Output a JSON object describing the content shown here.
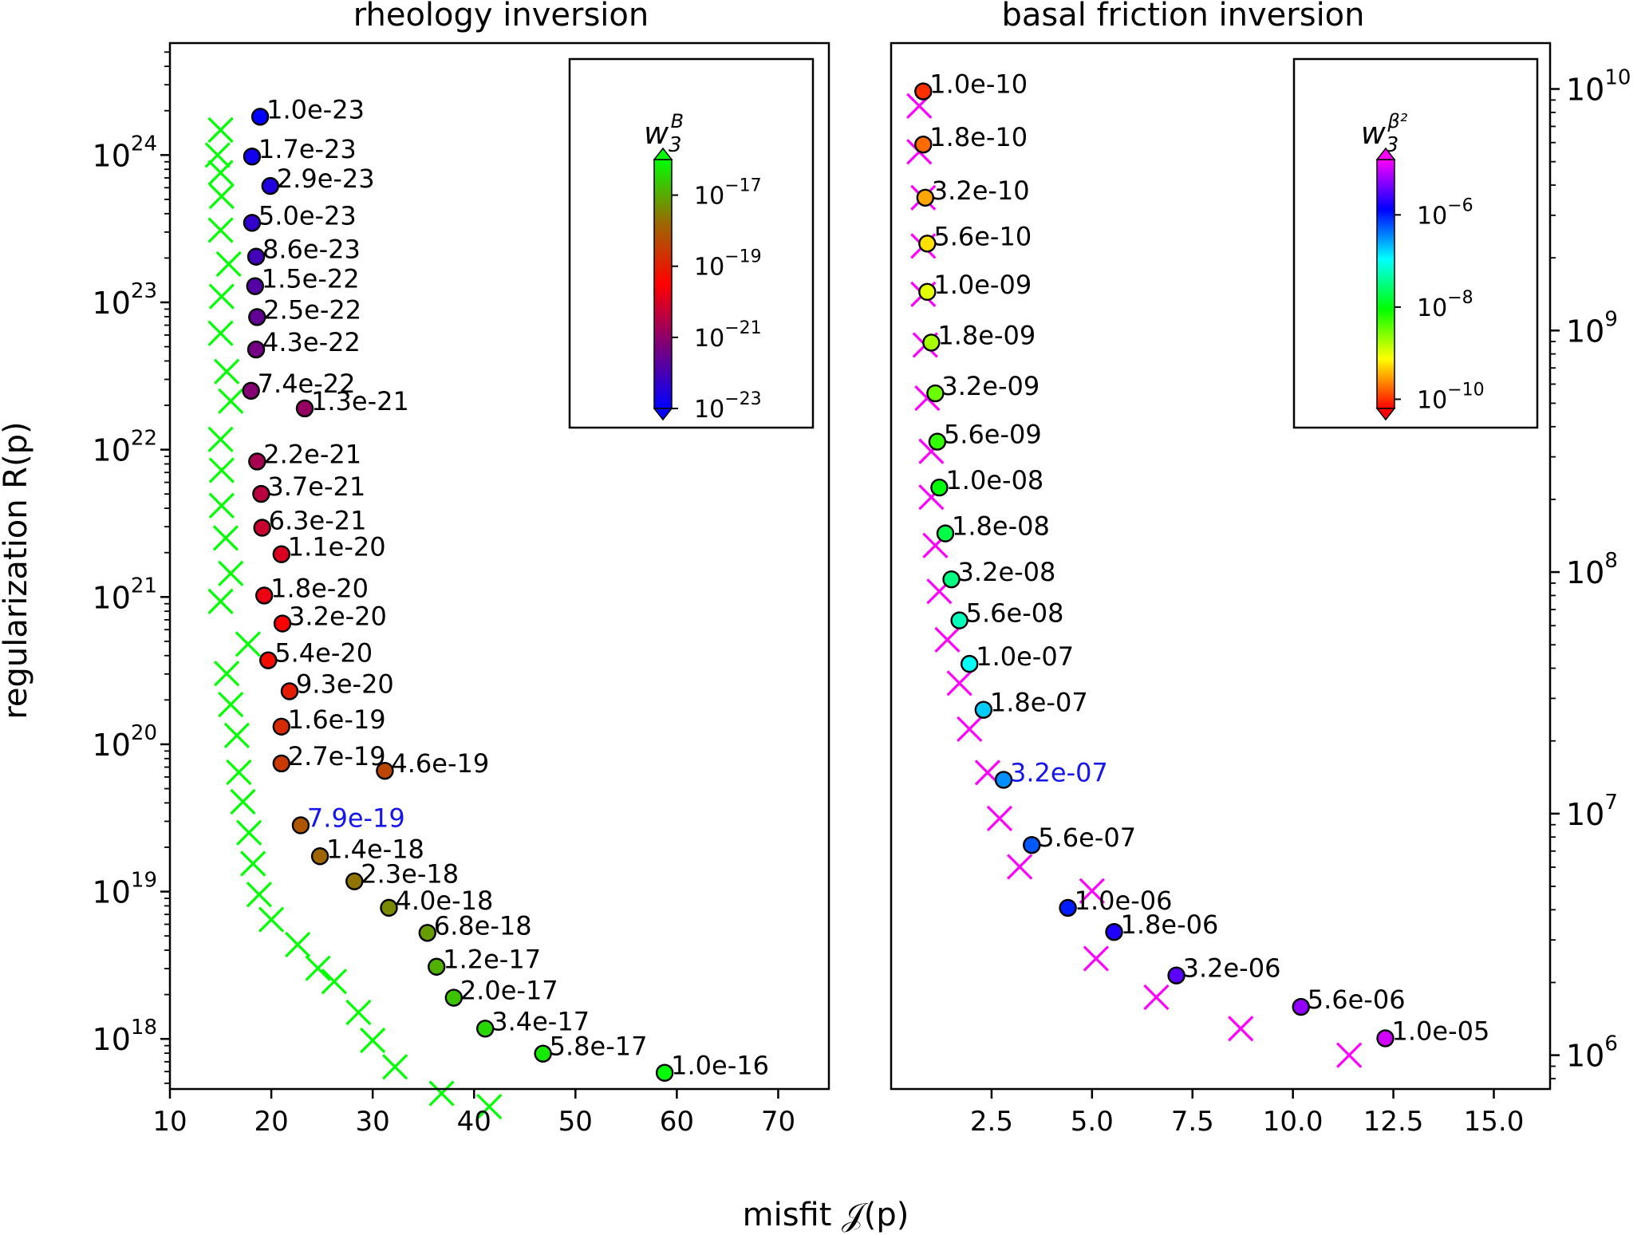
{
  "figure": {
    "xlabel": "misfit 𝒥(p)",
    "ylabel": "regularization R(p)"
  },
  "chart_data": [
    {
      "type": "scatter",
      "title": "rheology inversion",
      "xlim": [
        10,
        75
      ],
      "xticks": [
        10,
        20,
        30,
        40,
        50,
        60,
        70
      ],
      "xtick_labels": [
        "10",
        "20",
        "30",
        "40",
        "50",
        "60",
        "70"
      ],
      "yscale": "log",
      "ylim_exp": [
        17.66,
        24.76
      ],
      "yticks_exp": [
        18,
        19,
        20,
        21,
        22,
        23,
        24
      ],
      "ytick_labels": [
        "10",
        "10",
        "10",
        "10",
        "10",
        "10",
        "10"
      ],
      "ytick_superscripts": [
        "18",
        "19",
        "20",
        "21",
        "22",
        "23",
        "24"
      ],
      "yaxis_side": "left",
      "highlight": "7.9e-19",
      "highlight_color": "#1515ee",
      "colorbar": {
        "symbol": "w",
        "subscript": "3",
        "superscript": "B",
        "range_exp": [
          -23,
          -16
        ],
        "tick_exps": [
          -23,
          -21,
          -19,
          -17
        ],
        "tick_labels": [
          "10",
          "10",
          "10",
          "10"
        ],
        "tick_superscripts": [
          "−23",
          "−21",
          "−19",
          "−17"
        ],
        "stops": [
          "#0000ff",
          "#7b007b",
          "#ff0000",
          "#996b00",
          "#00ff00"
        ]
      },
      "series": [
        {
          "name": "labeled (circles)",
          "labels": [
            "1.0e-23",
            "1.7e-23",
            "2.9e-23",
            "5.0e-23",
            "8.6e-23",
            "1.5e-22",
            "2.5e-22",
            "4.3e-22",
            "7.4e-22",
            "1.3e-21",
            "2.2e-21",
            "3.7e-21",
            "6.3e-21",
            "1.1e-20",
            "1.8e-20",
            "3.2e-20",
            "5.4e-20",
            "9.3e-20",
            "1.6e-19",
            "2.7e-19",
            "4.6e-19",
            "7.9e-19",
            "1.4e-18",
            "2.3e-18",
            "4.0e-18",
            "6.8e-18",
            "1.2e-17",
            "2.0e-17",
            "3.4e-17",
            "5.8e-17",
            "1.0e-16"
          ],
          "x": [
            18.9,
            18.1,
            19.9,
            18.1,
            18.5,
            18.4,
            18.6,
            18.5,
            18.0,
            23.3,
            18.6,
            19.0,
            19.1,
            21.0,
            19.3,
            21.1,
            19.7,
            21.8,
            21.0,
            21.0,
            31.2,
            22.9,
            24.8,
            28.2,
            31.6,
            35.4,
            36.3,
            38.0,
            41.1,
            46.8,
            58.8
          ],
          "y_exp": [
            24.26,
            23.99,
            23.79,
            23.54,
            23.31,
            23.11,
            22.9,
            22.68,
            22.4,
            22.28,
            21.92,
            21.7,
            21.47,
            21.29,
            21.01,
            20.82,
            20.57,
            20.36,
            20.12,
            19.87,
            19.82,
            19.45,
            19.24,
            19.07,
            18.89,
            18.72,
            18.49,
            18.28,
            18.07,
            17.9,
            17.77
          ]
        },
        {
          "name": "crosses",
          "x": [
            15.0,
            14.7,
            15.0,
            15.1,
            15.0,
            15.8,
            15.1,
            15.0,
            15.6,
            16.0,
            15.0,
            15.1,
            15.1,
            15.5,
            16.0,
            15.0,
            17.7,
            15.6,
            16.0,
            16.6,
            16.8,
            17.2,
            17.8,
            18.2,
            18.8,
            20.0,
            22.6,
            24.6,
            26.2,
            28.6,
            30.0,
            32.2,
            36.8,
            41.5
          ],
          "y_exp": [
            24.17,
            24.0,
            23.88,
            23.72,
            23.49,
            23.26,
            23.04,
            22.79,
            22.53,
            22.33,
            22.07,
            21.86,
            21.62,
            21.4,
            21.16,
            20.97,
            20.68,
            20.48,
            20.27,
            20.06,
            19.81,
            19.61,
            19.4,
            19.19,
            18.98,
            18.81,
            18.64,
            18.48,
            18.39,
            18.18,
            17.99,
            17.81,
            17.63,
            17.54
          ]
        }
      ]
    },
    {
      "type": "scatter",
      "title": "basal friction inversion",
      "xlim": [
        0.0,
        16.4
      ],
      "xticks": [
        2.5,
        5.0,
        7.5,
        10.0,
        12.5,
        15.0
      ],
      "xtick_labels": [
        "2.5",
        "5.0",
        "7.5",
        "10.0",
        "12.5",
        "15.0"
      ],
      "yscale": "log",
      "ylim_exp": [
        5.86,
        10.19
      ],
      "yticks_exp": [
        6,
        7,
        8,
        9,
        10
      ],
      "ytick_labels": [
        "10",
        "10",
        "10",
        "10",
        "10"
      ],
      "ytick_superscripts": [
        "6",
        "7",
        "8",
        "9",
        "10"
      ],
      "yaxis_side": "right",
      "highlight": "3.2e-07",
      "highlight_color": "#1515ee",
      "colorbar": {
        "symbol": "w",
        "subscript": "3",
        "superscript": "β²",
        "range_exp": [
          -10.2,
          -4.8
        ],
        "tick_exps": [
          -10,
          -8,
          -6
        ],
        "tick_labels": [
          "10",
          "10",
          "10"
        ],
        "tick_superscripts": [
          "−10",
          "−8",
          "−6"
        ],
        "stops": [
          "#ff0000",
          "#ffff00",
          "#00ff00",
          "#00ffff",
          "#0000ff",
          "#ff00ff"
        ]
      },
      "series": [
        {
          "name": "labeled (circles)",
          "labels": [
            "1.0e-10",
            "1.8e-10",
            "3.2e-10",
            "5.6e-10",
            "1.0e-09",
            "1.8e-09",
            "3.2e-09",
            "5.6e-09",
            "1.0e-08",
            "1.8e-08",
            "3.2e-08",
            "5.6e-08",
            "1.0e-07",
            "1.8e-07",
            "3.2e-07",
            "5.6e-07",
            "1.0e-06",
            "1.8e-06",
            "3.2e-06",
            "5.6e-06",
            "1.0e-05"
          ],
          "x": [
            0.8,
            0.8,
            0.85,
            0.9,
            0.9,
            1.0,
            1.1,
            1.15,
            1.2,
            1.35,
            1.5,
            1.7,
            1.95,
            2.3,
            2.8,
            3.5,
            4.4,
            5.55,
            7.1,
            10.2,
            12.3
          ],
          "y_exp": [
            9.99,
            9.77,
            9.55,
            9.36,
            9.16,
            8.95,
            8.74,
            8.54,
            8.35,
            8.16,
            7.97,
            7.8,
            7.62,
            7.43,
            7.14,
            6.87,
            6.61,
            6.51,
            6.33,
            6.2,
            6.07
          ]
        },
        {
          "name": "crosses",
          "x": [
            0.7,
            0.7,
            0.8,
            0.8,
            0.8,
            0.85,
            0.9,
            1.0,
            1.0,
            1.1,
            1.2,
            1.4,
            1.7,
            1.95,
            2.4,
            2.7,
            3.2,
            5.0,
            5.1,
            6.6,
            8.7,
            11.4
          ],
          "y_exp": [
            9.93,
            9.74,
            9.55,
            9.35,
            9.15,
            8.94,
            8.72,
            8.5,
            8.31,
            8.11,
            7.92,
            7.72,
            7.54,
            7.35,
            7.17,
            6.98,
            6.78,
            6.68,
            6.4,
            6.24,
            6.11,
            6.0
          ]
        }
      ]
    }
  ]
}
